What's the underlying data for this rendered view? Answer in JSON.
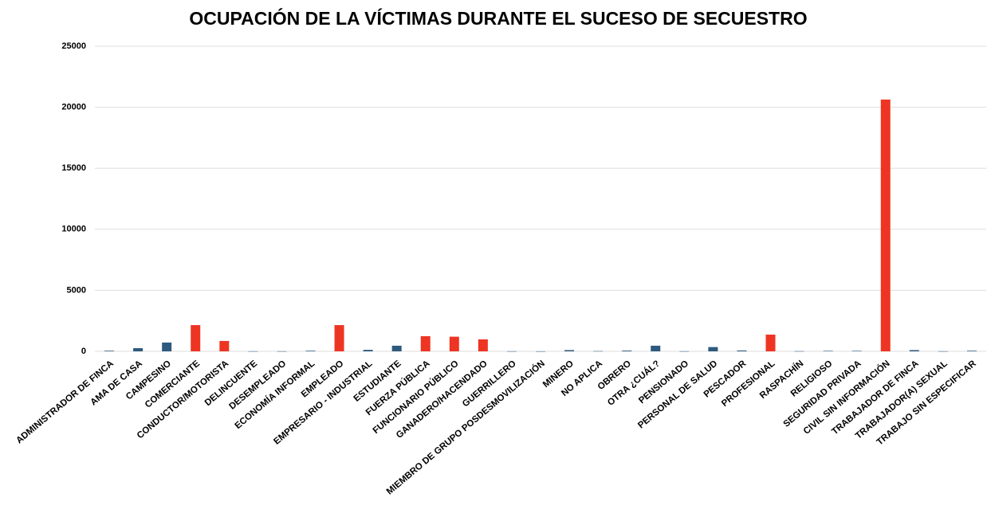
{
  "chart_data": {
    "type": "bar",
    "title": "OCUPACIÓN DE LA VÍCTIMAS DURANTE EL SUCESO DE  SECUESTRO",
    "categories": [
      "ADMINISTRADOR DE FINCA",
      "AMA DE CASA",
      "CAMPESINO",
      "COMERCIANTE",
      "CONDUCTOR/MOTORISTA",
      "DELINCUENTE",
      "DESEMPLEADO",
      "ECONOMÍA INFORMAL",
      "EMPLEADO",
      "EMPRESARIO - INDUSTRIAL",
      "ESTUDIANTE",
      "FUERZA PÚBLICA",
      "FUNCIONARIO PÚBLICO",
      "GANADERO/HACENDADO",
      "GUERRILLERO",
      "MIEMBRO DE GRUPO POSDESMOVILIZACIÓN",
      "MINERO",
      "NO APLICA",
      "OBRERO",
      "OTRA ¿CUÁL?",
      "PENSIONADO",
      "PERSONAL DE SALUD",
      "PESCADOR",
      "PROFESIONAL",
      "RASPACHÍN",
      "RELIGIOSO",
      "SEGURIDAD PRIVADA",
      "CIVIL SIN INFORMACIÓN",
      "TRABAJADOR DE FINCA",
      "TRABAJADOR(A) SEXUAL",
      "TRABAJO SIN ESPECIFICAR"
    ],
    "values": [
      50,
      260,
      720,
      2150,
      850,
      10,
      10,
      50,
      2150,
      120,
      460,
      1240,
      1200,
      980,
      10,
      5,
      100,
      20,
      60,
      460,
      10,
      350,
      70,
      1370,
      15,
      40,
      40,
      20630,
      100,
      10,
      50
    ],
    "colors": [
      "#2e5a7e",
      "#2e5a7e",
      "#2e5a7e",
      "#ee3524",
      "#ee3524",
      "#2e5a7e",
      "#2e5a7e",
      "#2e5a7e",
      "#ee3524",
      "#2e5a7e",
      "#2e5a7e",
      "#ee3524",
      "#ee3524",
      "#ee3524",
      "#2e5a7e",
      "#2e5a7e",
      "#2e5a7e",
      "#2e5a7e",
      "#2e5a7e",
      "#2e5a7e",
      "#2e5a7e",
      "#2e5a7e",
      "#2e5a7e",
      "#ee3524",
      "#2e5a7e",
      "#2e5a7e",
      "#2e5a7e",
      "#ee3524",
      "#2e5a7e",
      "#2e5a7e",
      "#2e5a7e"
    ],
    "ylim": [
      0,
      25000
    ],
    "yticks": [
      0,
      5000,
      10000,
      15000,
      20000,
      25000
    ],
    "grid": true
  }
}
